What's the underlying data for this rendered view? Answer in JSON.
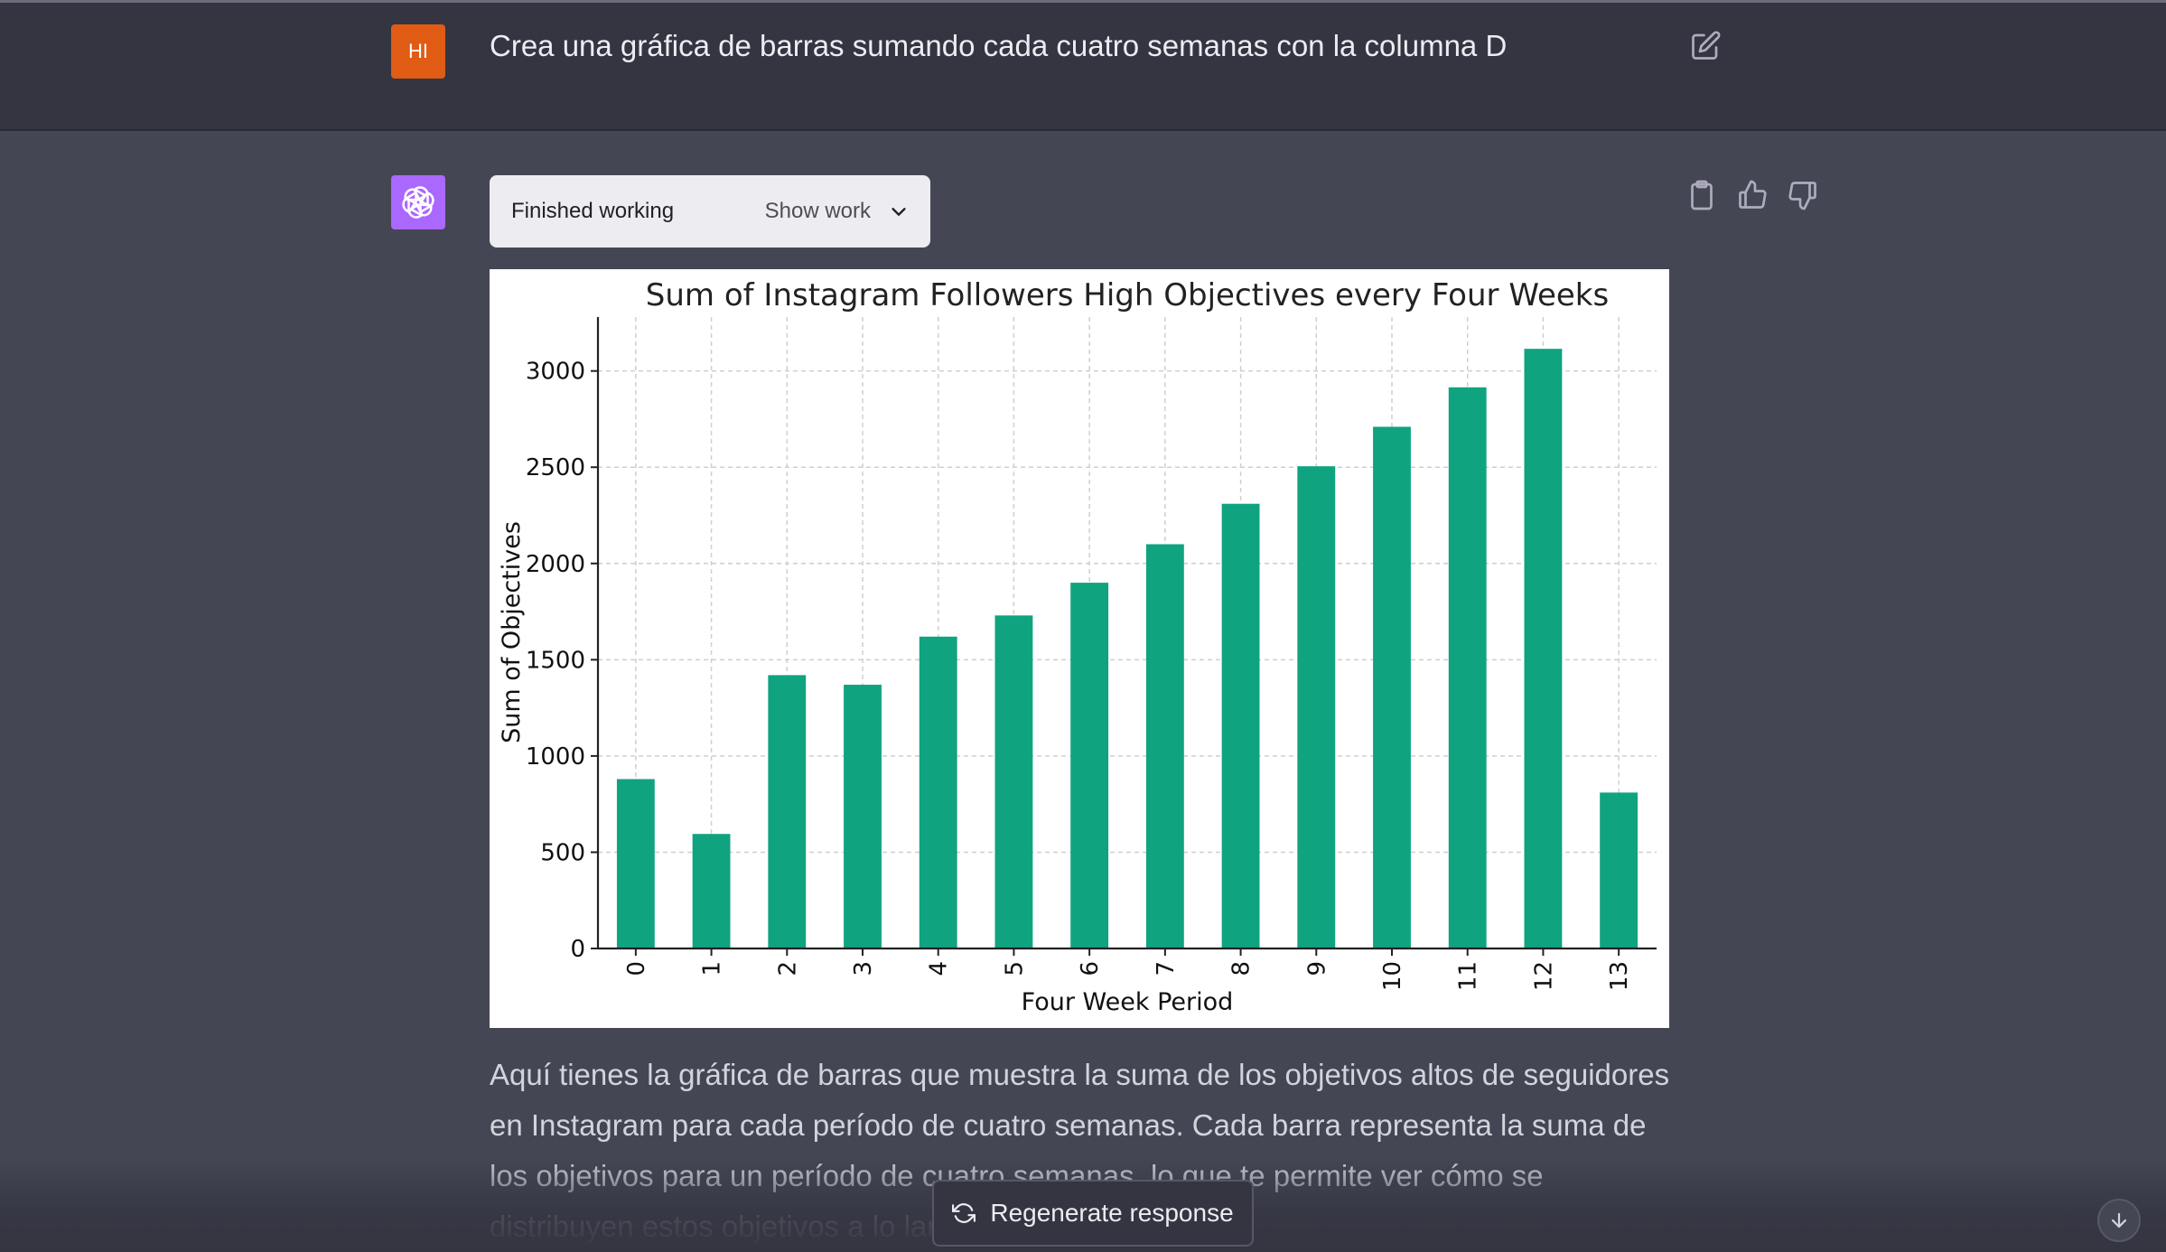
{
  "user_message": {
    "avatar_initials": "HI",
    "text": "Crea una gráfica de barras sumando cada cuatro semanas con la columna D"
  },
  "assistant": {
    "work_status": "Finished working",
    "show_work_label": "Show work",
    "response_text": "Aquí tienes la gráfica de barras que muestra la suma de los objetivos altos de seguidores en Instagram para cada período de cuatro semanas. Cada barra representa la suma de los objetivos para un período de cuatro semanas, lo que te permite ver cómo se distribuyen estos objetivos a lo largo del año."
  },
  "regenerate_label": "Regenerate response",
  "icons": {
    "edit": "edit-icon",
    "copy": "clipboard-icon",
    "like": "thumbs-up-icon",
    "dislike": "thumbs-down-icon",
    "regenerate": "refresh-icon",
    "scroll": "arrow-down-icon",
    "chevron": "chevron-down-icon",
    "assistant_logo": "openai-logo-icon"
  },
  "colors": {
    "user_avatar": "#e05b13",
    "assistant_avatar": "#ab68ff",
    "bar": "#10a37f"
  },
  "chart_data": {
    "type": "bar",
    "title": "Sum of Instagram Followers High Objectives every Four Weeks",
    "xlabel": "Four Week Period",
    "ylabel": "Sum of Objectives",
    "categories": [
      "0",
      "1",
      "2",
      "3",
      "4",
      "5",
      "6",
      "7",
      "8",
      "9",
      "10",
      "11",
      "12",
      "13"
    ],
    "values": [
      880,
      595,
      1420,
      1370,
      1620,
      1730,
      1900,
      2100,
      2310,
      2505,
      2710,
      2915,
      3115,
      810
    ],
    "ylim": [
      0,
      3280
    ],
    "yticks": [
      0,
      500,
      1000,
      1500,
      2000,
      2500,
      3000
    ],
    "grid": true,
    "color": "#10a37f"
  }
}
